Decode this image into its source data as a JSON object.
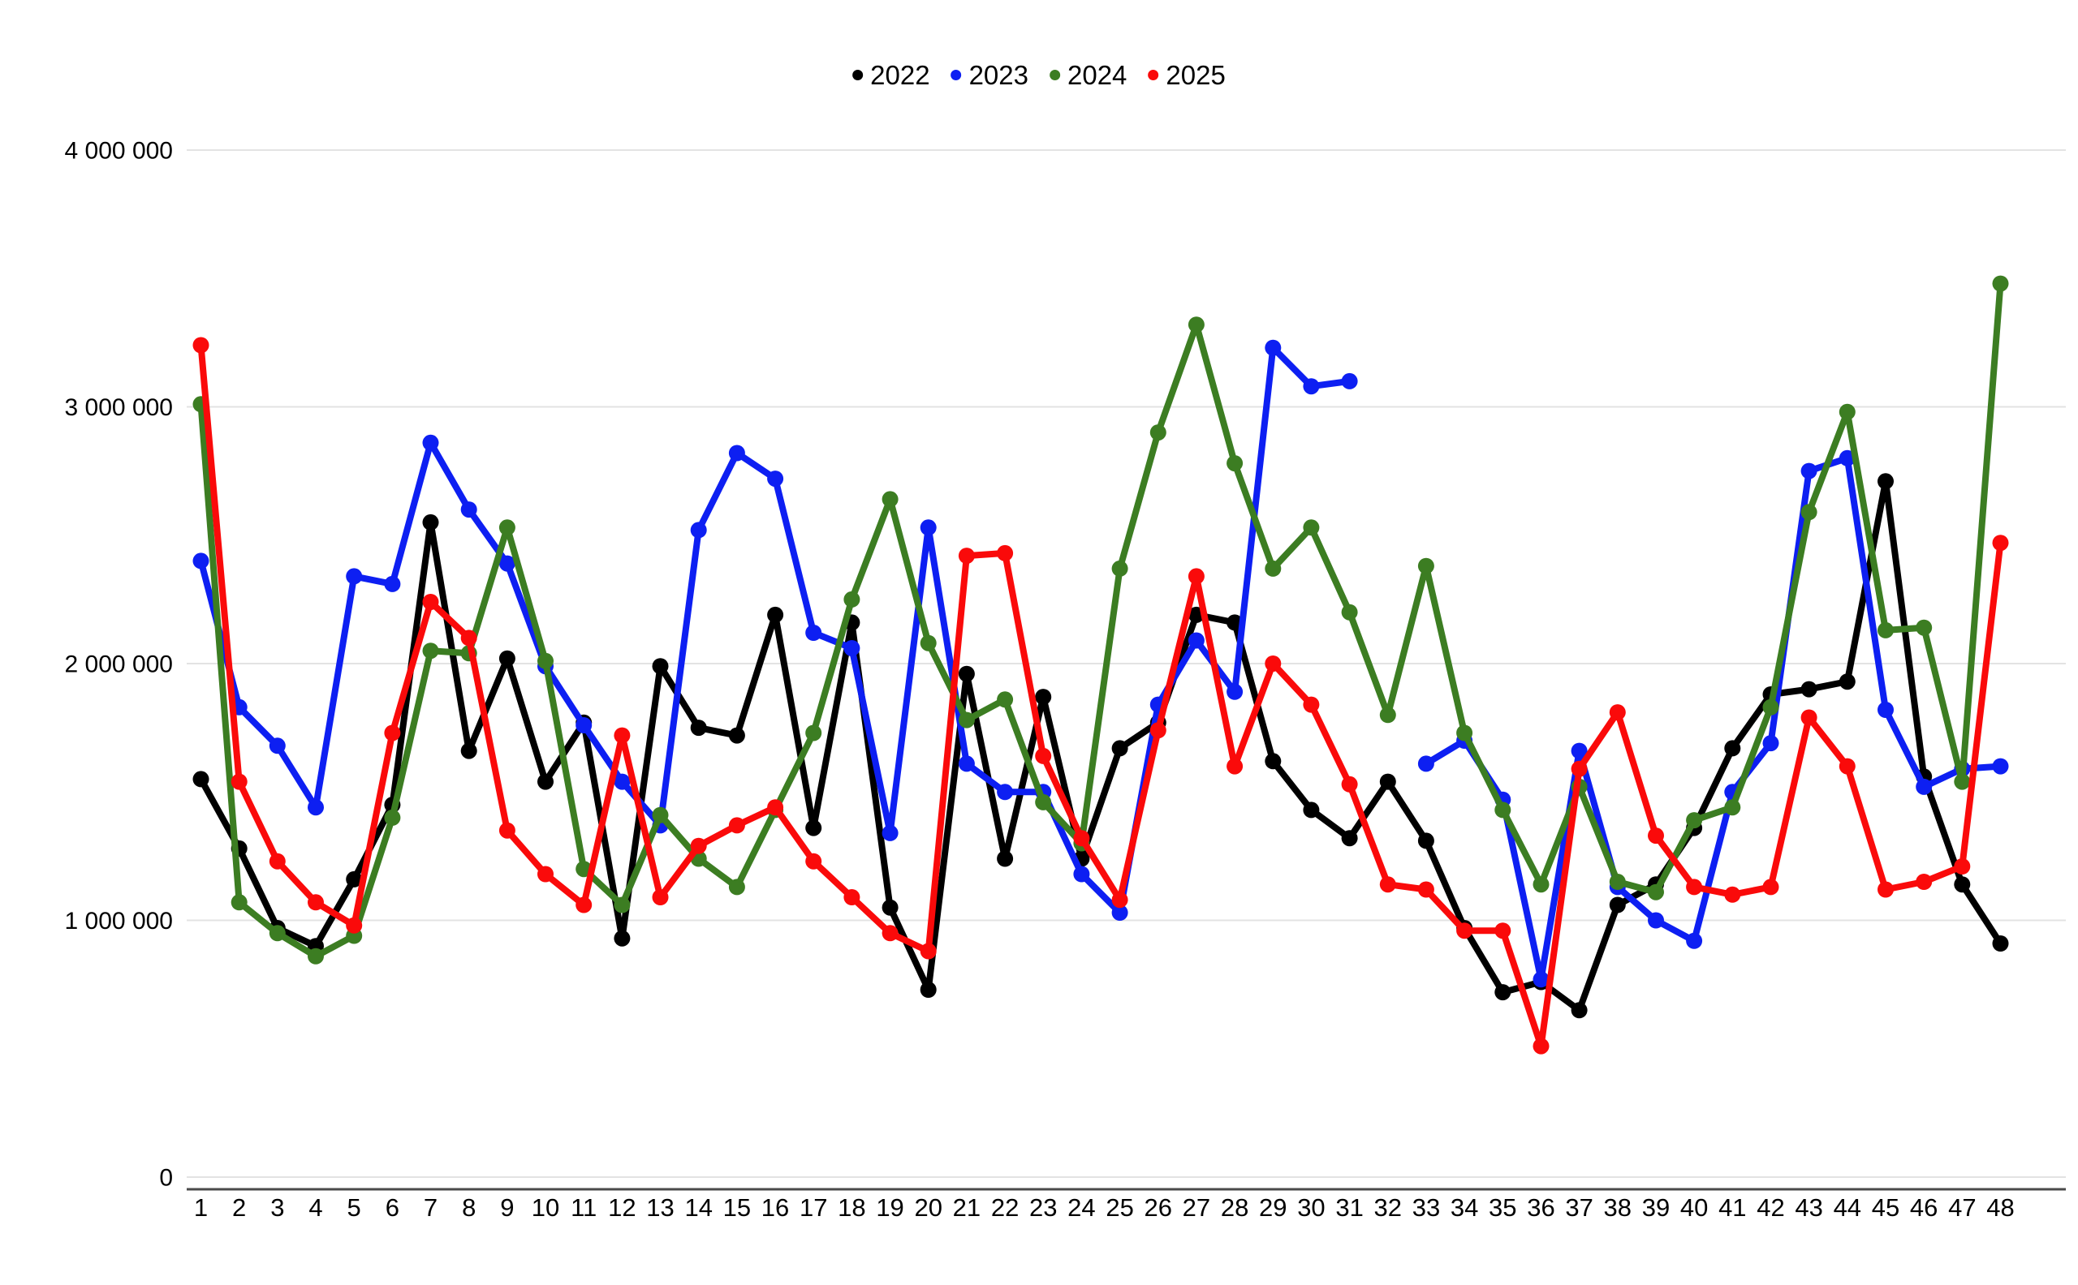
{
  "legend": {
    "items": [
      {
        "label": "2022",
        "color": "#000000"
      },
      {
        "label": "2023",
        "color": "#0d1ff2"
      },
      {
        "label": "2024",
        "color": "#3c7d22"
      },
      {
        "label": "2025",
        "color": "#fa0a0a"
      }
    ]
  },
  "y_axis": {
    "tick_values": [
      4000000,
      3000000,
      2000000,
      1000000,
      0
    ],
    "tick_labels": [
      "4 000 000",
      "3 000 000",
      "2 000 000",
      "1 000 000",
      "0"
    ]
  },
  "x_axis": {
    "labels": [
      "1",
      "2",
      "3",
      "4",
      "5",
      "6",
      "7",
      "8",
      "9",
      "10",
      "11",
      "12",
      "13",
      "14",
      "15",
      "16",
      "17",
      "18",
      "19",
      "20",
      "21",
      "22",
      "23",
      "24",
      "25",
      "26",
      "27",
      "28",
      "29",
      "30",
      "31",
      "32",
      "33",
      "34",
      "35",
      "36",
      "37",
      "38",
      "39",
      "40",
      "41",
      "42",
      "43",
      "44",
      "45",
      "46",
      "47",
      "48"
    ]
  },
  "chart_data": {
    "type": "line",
    "title": "",
    "xlabel": "",
    "ylabel": "",
    "ylim": [
      0,
      4000000
    ],
    "grid": true,
    "legend_position": "top-center",
    "x": [
      1,
      2,
      3,
      4,
      5,
      6,
      7,
      8,
      9,
      10,
      11,
      12,
      13,
      14,
      15,
      16,
      17,
      18,
      19,
      20,
      21,
      22,
      23,
      24,
      25,
      26,
      27,
      28,
      29,
      30,
      31,
      32,
      33,
      34,
      35,
      36,
      37,
      38,
      39,
      40,
      41,
      42,
      43,
      44,
      45,
      46,
      47,
      48
    ],
    "series": [
      {
        "name": "2022",
        "color": "#000000",
        "values": [
          1550000,
          1280000,
          970000,
          900000,
          1160000,
          1450000,
          2550000,
          1660000,
          2020000,
          1540000,
          1770000,
          930000,
          1990000,
          1750000,
          1720000,
          2190000,
          1360000,
          2160000,
          1050000,
          730000,
          1960000,
          1240000,
          1870000,
          1240000,
          1670000,
          1770000,
          2190000,
          2160000,
          1620000,
          1430000,
          1320000,
          1540000,
          1310000,
          970000,
          720000,
          760000,
          650000,
          1060000,
          1140000,
          1360000,
          1670000,
          1880000,
          1900000,
          1930000,
          2710000,
          1560000,
          1140000,
          910000
        ]
      },
      {
        "name": "2023",
        "color": "#0d1ff2",
        "values": [
          2400000,
          1830000,
          1680000,
          1440000,
          2340000,
          2310000,
          2860000,
          2600000,
          2390000,
          1990000,
          1760000,
          1540000,
          1370000,
          2520000,
          2820000,
          2720000,
          2120000,
          2060000,
          1340000,
          2530000,
          1610000,
          1500000,
          1500000,
          1180000,
          1030000,
          1840000,
          2090000,
          1890000,
          3230000,
          3080000,
          3100000,
          null,
          1610000,
          1700000,
          1470000,
          770000,
          1660000,
          1130000,
          1000000,
          920000,
          1500000,
          1690000,
          2750000,
          2800000,
          1820000,
          1520000,
          1590000,
          1600000
        ]
      },
      {
        "name": "2024",
        "color": "#3c7d22",
        "values": [
          3010000,
          1070000,
          950000,
          860000,
          940000,
          1400000,
          2050000,
          2040000,
          2530000,
          2010000,
          1200000,
          1060000,
          1410000,
          1240000,
          1130000,
          1430000,
          1730000,
          2250000,
          2640000,
          2080000,
          1780000,
          1860000,
          1460000,
          1300000,
          2370000,
          2900000,
          3320000,
          2780000,
          2370000,
          2530000,
          2200000,
          1800000,
          2380000,
          1730000,
          1430000,
          1140000,
          1520000,
          1150000,
          1110000,
          1390000,
          1440000,
          1830000,
          2590000,
          2980000,
          2130000,
          2140000,
          1540000,
          3480000
        ]
      },
      {
        "name": "2025",
        "color": "#fa0a0a",
        "values": [
          3240000,
          1540000,
          1230000,
          1070000,
          980000,
          1730000,
          2240000,
          2100000,
          1350000,
          1180000,
          1060000,
          1720000,
          1090000,
          1290000,
          1370000,
          1440000,
          1230000,
          1090000,
          950000,
          880000,
          2420000,
          2430000,
          1640000,
          1320000,
          1080000,
          1740000,
          2340000,
          1600000,
          2000000,
          1840000,
          1530000,
          1140000,
          1120000,
          960000,
          960000,
          510000,
          1590000,
          1810000,
          1330000,
          1130000,
          1100000,
          1130000,
          1790000,
          1600000,
          1120000,
          1150000,
          1210000,
          2470000
        ]
      }
    ]
  },
  "style": {
    "gridline_color": "#e3e3e3",
    "axis_line_color": "#4a4a4a",
    "text_color": "#000000",
    "background": "#ffffff"
  }
}
